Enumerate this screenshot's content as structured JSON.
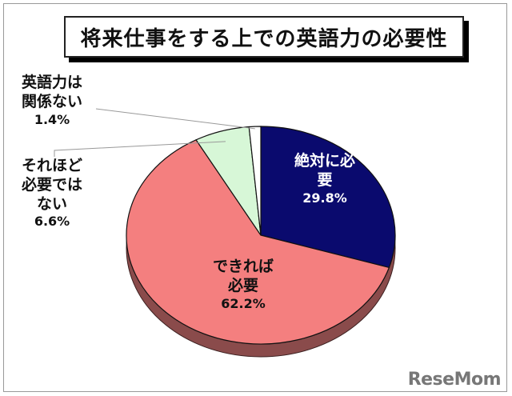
{
  "chart_data": {
    "type": "pie",
    "title": "将来仕事をする上での英語力の必要性",
    "slices": [
      {
        "label_lines": [
          "絶対に必",
          "要"
        ],
        "value": 29.8,
        "value_text": "29.8%",
        "color": "#0a0a6e"
      },
      {
        "label_lines": [
          "できれば",
          "必要"
        ],
        "value": 62.2,
        "value_text": "62.2%",
        "color": "#f47f7f"
      },
      {
        "label_lines": [
          "それほど",
          "必要では",
          "ない"
        ],
        "value": 6.6,
        "value_text": "6.6%",
        "color": "#d7f7d7"
      },
      {
        "label_lines": [
          "英語力は",
          "関係ない"
        ],
        "value": 1.4,
        "value_text": "1.4%",
        "color": "#ffffff"
      }
    ],
    "start_angle_deg": 0,
    "direction": "clockwise",
    "depth_color": "#8a4b4b"
  },
  "watermark": "ReseMom"
}
